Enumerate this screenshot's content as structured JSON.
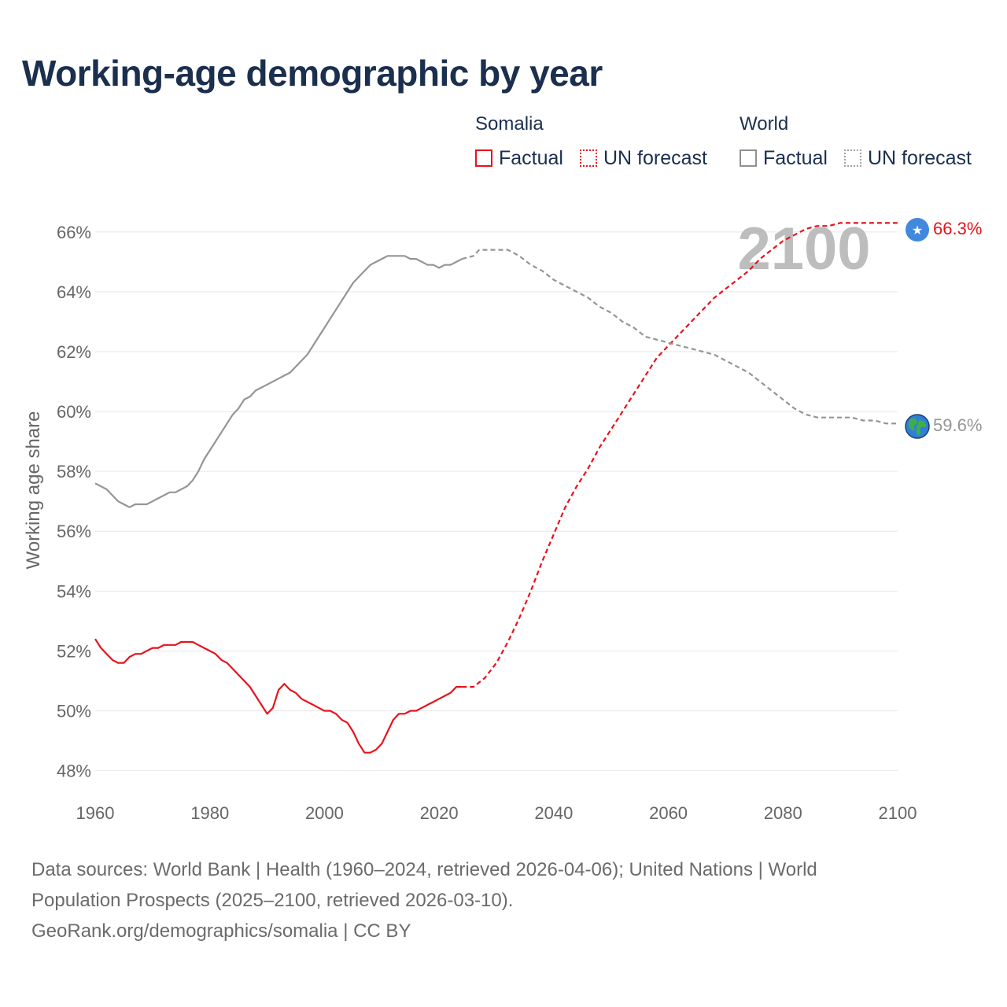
{
  "title": "Working-age demographic by year",
  "legend": {
    "somalia": {
      "label": "Somalia",
      "factual": "Factual",
      "forecast": "UN forecast"
    },
    "world": {
      "label": "World",
      "factual": "Factual",
      "forecast": "UN forecast"
    }
  },
  "colors": {
    "somalia": "#e8121b",
    "world": "#959595",
    "title": "#1b2f4e",
    "grid": "#e6e6e6"
  },
  "footer": {
    "line1": "Data sources: World Bank | Health (1960–2024, retrieved 2026-04-06); United Nations | World",
    "line2": "Population Prospects (2025–2100, retrieved 2026-03-10).",
    "line3": "GeoRank.org/demographics/somalia | CC BY"
  },
  "chart_data": {
    "type": "line",
    "title": "Working-age demographic by year",
    "xlabel": "",
    "ylabel": "Working age share",
    "xlim": [
      1960,
      2100
    ],
    "ylim": [
      47.2,
      66.6
    ],
    "x_ticks": [
      1960,
      1980,
      2000,
      2020,
      2040,
      2060,
      2080,
      2100
    ],
    "y_ticks": [
      48,
      50,
      52,
      54,
      56,
      58,
      60,
      62,
      64,
      66
    ],
    "y_tick_suffix": "%",
    "grid": true,
    "year_overlay": "2100",
    "end_labels": {
      "somalia": "66.3%",
      "world": "59.6%"
    },
    "end_icons": {
      "somalia": "somalia-flag-icon",
      "world": "globe-icon"
    },
    "series": [
      {
        "name": "Somalia",
        "segment": "Factual",
        "style": "solid",
        "points": [
          [
            1960,
            52.4
          ],
          [
            1961,
            52.1
          ],
          [
            1962,
            51.9
          ],
          [
            1963,
            51.7
          ],
          [
            1964,
            51.6
          ],
          [
            1965,
            51.6
          ],
          [
            1966,
            51.8
          ],
          [
            1967,
            51.9
          ],
          [
            1968,
            51.9
          ],
          [
            1969,
            52.0
          ],
          [
            1970,
            52.1
          ],
          [
            1971,
            52.1
          ],
          [
            1972,
            52.2
          ],
          [
            1973,
            52.2
          ],
          [
            1974,
            52.2
          ],
          [
            1975,
            52.3
          ],
          [
            1976,
            52.3
          ],
          [
            1977,
            52.3
          ],
          [
            1978,
            52.2
          ],
          [
            1979,
            52.1
          ],
          [
            1980,
            52.0
          ],
          [
            1981,
            51.9
          ],
          [
            1982,
            51.7
          ],
          [
            1983,
            51.6
          ],
          [
            1984,
            51.4
          ],
          [
            1985,
            51.2
          ],
          [
            1986,
            51.0
          ],
          [
            1987,
            50.8
          ],
          [
            1988,
            50.5
          ],
          [
            1989,
            50.2
          ],
          [
            1990,
            49.9
          ],
          [
            1991,
            50.1
          ],
          [
            1992,
            50.7
          ],
          [
            1993,
            50.9
          ],
          [
            1994,
            50.7
          ],
          [
            1995,
            50.6
          ],
          [
            1996,
            50.4
          ],
          [
            1997,
            50.3
          ],
          [
            1998,
            50.2
          ],
          [
            1999,
            50.1
          ],
          [
            2000,
            50.0
          ],
          [
            2001,
            50.0
          ],
          [
            2002,
            49.9
          ],
          [
            2003,
            49.7
          ],
          [
            2004,
            49.6
          ],
          [
            2005,
            49.3
          ],
          [
            2006,
            48.9
          ],
          [
            2007,
            48.6
          ],
          [
            2008,
            48.6
          ],
          [
            2009,
            48.7
          ],
          [
            2010,
            48.9
          ],
          [
            2011,
            49.3
          ],
          [
            2012,
            49.7
          ],
          [
            2013,
            49.9
          ],
          [
            2014,
            49.9
          ],
          [
            2015,
            50.0
          ],
          [
            2016,
            50.0
          ],
          [
            2017,
            50.1
          ],
          [
            2018,
            50.2
          ],
          [
            2019,
            50.3
          ],
          [
            2020,
            50.4
          ],
          [
            2021,
            50.5
          ],
          [
            2022,
            50.6
          ],
          [
            2023,
            50.8
          ],
          [
            2024,
            50.8
          ]
        ]
      },
      {
        "name": "Somalia",
        "segment": "UN forecast",
        "style": "dashed",
        "points": [
          [
            2024,
            50.8
          ],
          [
            2026,
            50.8
          ],
          [
            2028,
            51.1
          ],
          [
            2030,
            51.6
          ],
          [
            2032,
            52.3
          ],
          [
            2034,
            53.1
          ],
          [
            2036,
            54.0
          ],
          [
            2038,
            55.0
          ],
          [
            2040,
            55.9
          ],
          [
            2042,
            56.8
          ],
          [
            2044,
            57.5
          ],
          [
            2046,
            58.1
          ],
          [
            2048,
            58.8
          ],
          [
            2050,
            59.4
          ],
          [
            2052,
            60.0
          ],
          [
            2054,
            60.6
          ],
          [
            2056,
            61.2
          ],
          [
            2058,
            61.8
          ],
          [
            2060,
            62.2
          ],
          [
            2062,
            62.6
          ],
          [
            2064,
            63.0
          ],
          [
            2066,
            63.4
          ],
          [
            2068,
            63.8
          ],
          [
            2070,
            64.1
          ],
          [
            2072,
            64.4
          ],
          [
            2074,
            64.7
          ],
          [
            2076,
            65.1
          ],
          [
            2078,
            65.4
          ],
          [
            2080,
            65.7
          ],
          [
            2082,
            65.9
          ],
          [
            2084,
            66.1
          ],
          [
            2086,
            66.2
          ],
          [
            2088,
            66.2
          ],
          [
            2090,
            66.3
          ],
          [
            2095,
            66.3
          ],
          [
            2100,
            66.3
          ]
        ]
      },
      {
        "name": "World",
        "segment": "Factual",
        "style": "solid",
        "points": [
          [
            1960,
            57.6
          ],
          [
            1961,
            57.5
          ],
          [
            1962,
            57.4
          ],
          [
            1963,
            57.2
          ],
          [
            1964,
            57.0
          ],
          [
            1965,
            56.9
          ],
          [
            1966,
            56.8
          ],
          [
            1967,
            56.9
          ],
          [
            1968,
            56.9
          ],
          [
            1969,
            56.9
          ],
          [
            1970,
            57.0
          ],
          [
            1971,
            57.1
          ],
          [
            1972,
            57.2
          ],
          [
            1973,
            57.3
          ],
          [
            1974,
            57.3
          ],
          [
            1975,
            57.4
          ],
          [
            1976,
            57.5
          ],
          [
            1977,
            57.7
          ],
          [
            1978,
            58.0
          ],
          [
            1979,
            58.4
          ],
          [
            1980,
            58.7
          ],
          [
            1981,
            59.0
          ],
          [
            1982,
            59.3
          ],
          [
            1983,
            59.6
          ],
          [
            1984,
            59.9
          ],
          [
            1985,
            60.1
          ],
          [
            1986,
            60.4
          ],
          [
            1987,
            60.5
          ],
          [
            1988,
            60.7
          ],
          [
            1989,
            60.8
          ],
          [
            1990,
            60.9
          ],
          [
            1991,
            61.0
          ],
          [
            1992,
            61.1
          ],
          [
            1993,
            61.2
          ],
          [
            1994,
            61.3
          ],
          [
            1995,
            61.5
          ],
          [
            1996,
            61.7
          ],
          [
            1997,
            61.9
          ],
          [
            1998,
            62.2
          ],
          [
            1999,
            62.5
          ],
          [
            2000,
            62.8
          ],
          [
            2001,
            63.1
          ],
          [
            2002,
            63.4
          ],
          [
            2003,
            63.7
          ],
          [
            2004,
            64.0
          ],
          [
            2005,
            64.3
          ],
          [
            2006,
            64.5
          ],
          [
            2007,
            64.7
          ],
          [
            2008,
            64.9
          ],
          [
            2009,
            65.0
          ],
          [
            2010,
            65.1
          ],
          [
            2011,
            65.2
          ],
          [
            2012,
            65.2
          ],
          [
            2013,
            65.2
          ],
          [
            2014,
            65.2
          ],
          [
            2015,
            65.1
          ],
          [
            2016,
            65.1
          ],
          [
            2017,
            65.0
          ],
          [
            2018,
            64.9
          ],
          [
            2019,
            64.9
          ],
          [
            2020,
            64.8
          ],
          [
            2021,
            64.9
          ],
          [
            2022,
            64.9
          ],
          [
            2023,
            65.0
          ],
          [
            2024,
            65.1
          ]
        ]
      },
      {
        "name": "World",
        "segment": "UN forecast",
        "style": "dashed",
        "points": [
          [
            2024,
            65.1
          ],
          [
            2026,
            65.2
          ],
          [
            2027,
            65.4
          ],
          [
            2028,
            65.4
          ],
          [
            2030,
            65.4
          ],
          [
            2032,
            65.4
          ],
          [
            2034,
            65.2
          ],
          [
            2036,
            64.9
          ],
          [
            2038,
            64.7
          ],
          [
            2040,
            64.4
          ],
          [
            2042,
            64.2
          ],
          [
            2044,
            64.0
          ],
          [
            2046,
            63.8
          ],
          [
            2048,
            63.5
          ],
          [
            2050,
            63.3
          ],
          [
            2052,
            63.0
          ],
          [
            2054,
            62.8
          ],
          [
            2056,
            62.5
          ],
          [
            2058,
            62.4
          ],
          [
            2060,
            62.3
          ],
          [
            2062,
            62.2
          ],
          [
            2064,
            62.1
          ],
          [
            2066,
            62.0
          ],
          [
            2068,
            61.9
          ],
          [
            2070,
            61.7
          ],
          [
            2072,
            61.5
          ],
          [
            2074,
            61.3
          ],
          [
            2076,
            61.0
          ],
          [
            2078,
            60.7
          ],
          [
            2080,
            60.4
          ],
          [
            2082,
            60.1
          ],
          [
            2084,
            59.9
          ],
          [
            2086,
            59.8
          ],
          [
            2088,
            59.8
          ],
          [
            2090,
            59.8
          ],
          [
            2092,
            59.8
          ],
          [
            2094,
            59.7
          ],
          [
            2096,
            59.7
          ],
          [
            2098,
            59.6
          ],
          [
            2100,
            59.6
          ]
        ]
      }
    ]
  }
}
